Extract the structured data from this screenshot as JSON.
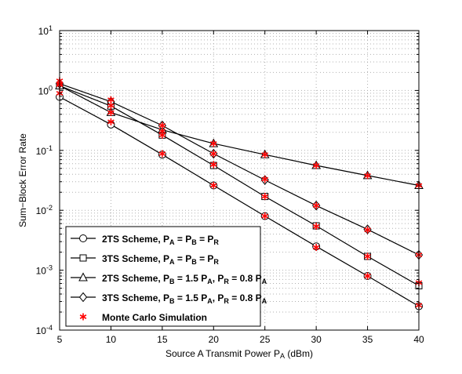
{
  "chart_data": {
    "type": "line",
    "title": "",
    "xlabel": "Source A Transmit Power P",
    "xlabel_sub": "A",
    "xlabel_suffix": " (dBm)",
    "ylabel": "Sum−Block Error Rate",
    "xlim": [
      5,
      40
    ],
    "ylim": [
      0.0001,
      10
    ],
    "yscale": "log",
    "grid": true,
    "legend_position": "bottom-left",
    "x_ticks": [
      5,
      10,
      15,
      20,
      25,
      30,
      35,
      40
    ],
    "x_tick_labels": [
      "5",
      "10",
      "15",
      "20",
      "25",
      "30",
      "35",
      "40"
    ],
    "y_tick_exponents": [
      "1",
      "0",
      "-1",
      "-2",
      "-3",
      "-4"
    ],
    "y_tick_base": "10",
    "x": [
      5,
      10,
      15,
      20,
      25,
      30,
      35,
      40
    ],
    "series": [
      {
        "name": "2TS Scheme, P_A = P_B = P_R",
        "marker": "circle",
        "legend_parts": [
          [
            "2TS Scheme, P",
            ""
          ],
          [
            "A",
            "sub"
          ],
          [
            " = P",
            ""
          ],
          [
            "B",
            "sub"
          ],
          [
            " = P",
            ""
          ],
          [
            "R",
            "sub"
          ]
        ],
        "values": [
          0.78,
          0.27,
          0.085,
          0.026,
          0.008,
          0.0025,
          0.0008,
          0.00025
        ]
      },
      {
        "name": "3TS Scheme, P_A = P_B = P_R",
        "marker": "square",
        "legend_parts": [
          [
            "3TS Scheme, P",
            ""
          ],
          [
            "A",
            "sub"
          ],
          [
            " = P",
            ""
          ],
          [
            "B",
            "sub"
          ],
          [
            " = P",
            ""
          ],
          [
            "R",
            "sub"
          ]
        ],
        "values": [
          1.2,
          0.55,
          0.18,
          0.056,
          0.017,
          0.0055,
          0.0017,
          0.00055
        ]
      },
      {
        "name": "2TS Scheme, P_B = 1.5 P_A, P_R = 0.8 P_A",
        "marker": "triangle",
        "legend_parts": [
          [
            "2TS Scheme, P",
            ""
          ],
          [
            "B",
            "sub"
          ],
          [
            " = 1.5 P",
            ""
          ],
          [
            "A",
            "sub"
          ],
          [
            ", P",
            ""
          ],
          [
            "R",
            "sub"
          ],
          [
            " = 0.8 P",
            ""
          ],
          [
            "A",
            "sub"
          ]
        ],
        "values": [
          1.2,
          0.43,
          0.22,
          0.13,
          0.085,
          0.056,
          0.038,
          0.026
        ]
      },
      {
        "name": "3TS Scheme, P_B = 1.5 P_A, P_R = 0.8 P_A",
        "marker": "diamond",
        "legend_parts": [
          [
            "3TS Scheme, P",
            ""
          ],
          [
            "B",
            "sub"
          ],
          [
            " = 1.5 P",
            ""
          ],
          [
            "A",
            "sub"
          ],
          [
            ", P",
            ""
          ],
          [
            "R",
            "sub"
          ],
          [
            " = 0.8 P",
            ""
          ],
          [
            "A",
            "sub"
          ]
        ],
        "values": [
          1.3,
          0.65,
          0.26,
          0.088,
          0.032,
          0.012,
          0.0048,
          0.0018
        ]
      }
    ],
    "monte_carlo": {
      "name": "Monte Carlo Simulation",
      "marker": "asterisk",
      "color": "#ff0000",
      "points": [
        [
          5,
          0.9
        ],
        [
          5,
          1.25
        ],
        [
          5,
          1.3
        ],
        [
          5,
          1.45
        ],
        [
          10,
          0.3
        ],
        [
          10,
          0.43
        ],
        [
          10,
          0.56
        ],
        [
          10,
          0.7
        ],
        [
          15,
          0.088
        ],
        [
          15,
          0.18
        ],
        [
          15,
          0.21
        ],
        [
          15,
          0.26
        ],
        [
          20,
          0.026
        ],
        [
          20,
          0.058
        ],
        [
          20,
          0.088
        ],
        [
          20,
          0.13
        ],
        [
          25,
          0.008
        ],
        [
          25,
          0.017
        ],
        [
          25,
          0.033
        ],
        [
          25,
          0.085
        ],
        [
          30,
          0.0024
        ],
        [
          30,
          0.0054
        ],
        [
          30,
          0.012
        ],
        [
          30,
          0.056
        ],
        [
          35,
          0.0008
        ],
        [
          35,
          0.0017
        ],
        [
          35,
          0.0047
        ],
        [
          35,
          0.038
        ],
        [
          40,
          0.00026
        ],
        [
          40,
          0.00062
        ],
        [
          40,
          0.0018
        ],
        [
          40,
          0.026
        ]
      ]
    },
    "colors": {
      "line": "#000000",
      "marker_fill": "#ffffff",
      "grid": "#b0b0b0",
      "simulation": "#ff0000"
    }
  }
}
